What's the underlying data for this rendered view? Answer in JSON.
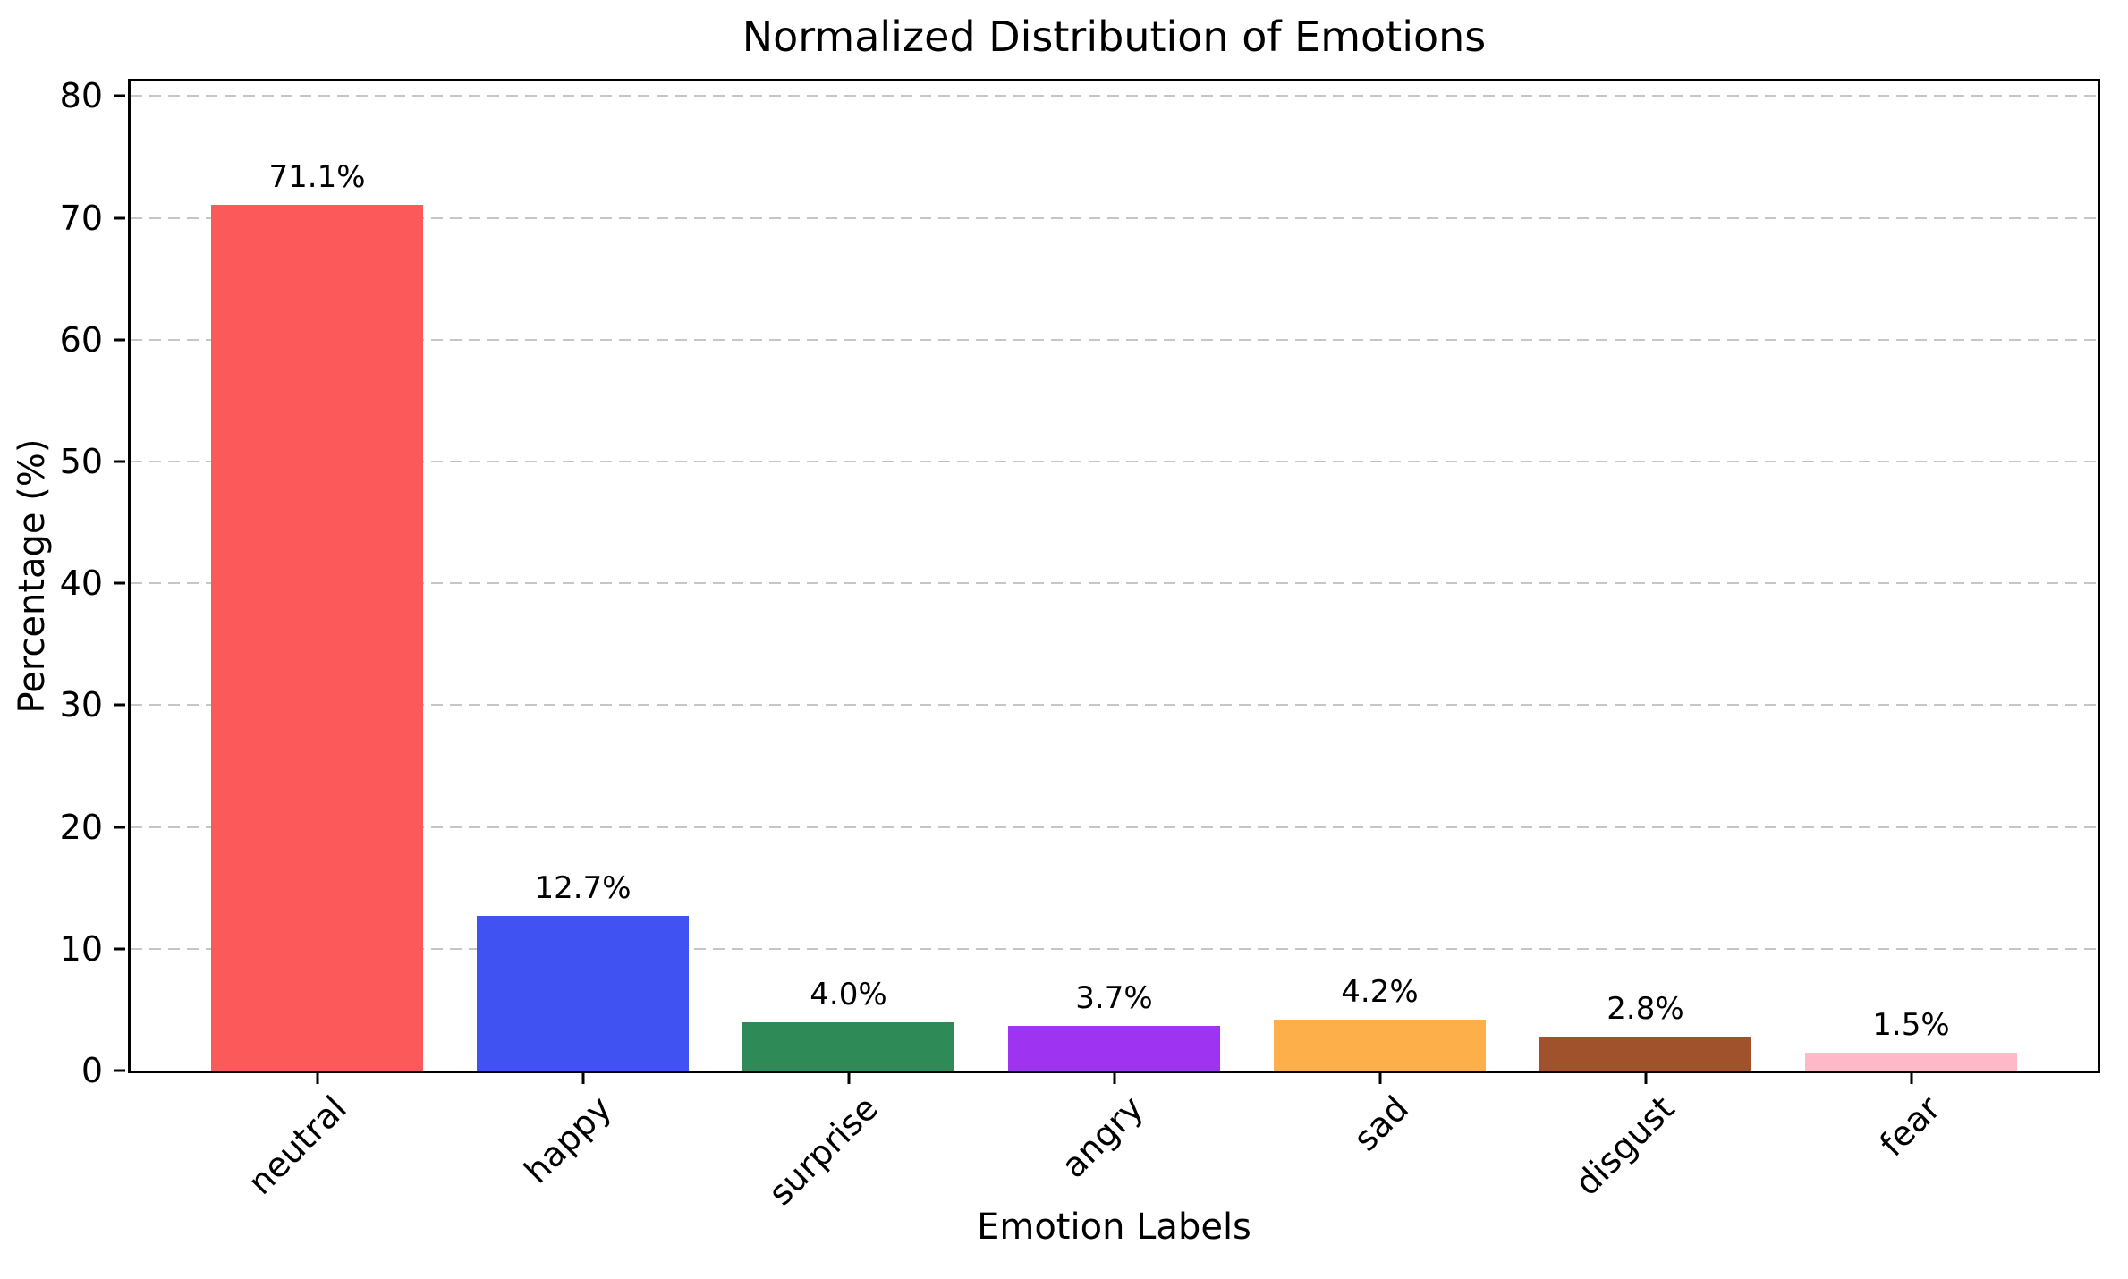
{
  "chart_data": {
    "type": "bar",
    "title": "Normalized Distribution of Emotions",
    "xlabel": "Emotion Labels",
    "ylabel": "Percentage (%)",
    "categories": [
      "neutral",
      "happy",
      "surprise",
      "angry",
      "sad",
      "disgust",
      "fear"
    ],
    "values": [
      71.1,
      12.7,
      4.0,
      3.7,
      4.2,
      2.8,
      1.5
    ],
    "value_labels": [
      "71.1%",
      "12.7%",
      "4.0%",
      "3.7%",
      "4.2%",
      "2.8%",
      "1.5%"
    ],
    "bar_colors": [
      "#fc5a5a",
      "#4152f2",
      "#2e8b57",
      "#9e33f2",
      "#fdb04a",
      "#a0522d",
      "#ffb8c6"
    ],
    "yticks": [
      0,
      10,
      20,
      30,
      40,
      50,
      60,
      70,
      80
    ],
    "ylim": [
      0,
      81.2
    ],
    "grid": {
      "axis": "y",
      "style": "dashed",
      "color": "#c6c6c6"
    },
    "frame_color": "#000000",
    "background_color": "#ffffff"
  }
}
